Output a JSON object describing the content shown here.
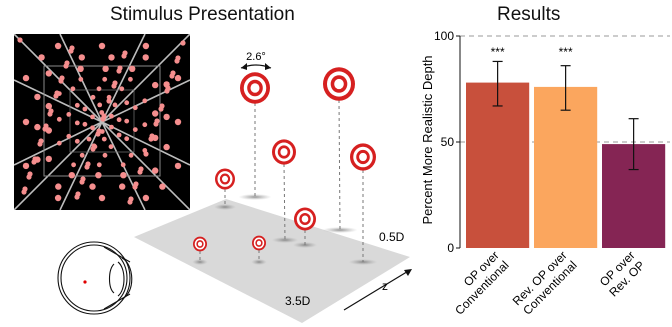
{
  "stimulus": {
    "title": "Stimulus Presentation",
    "angle_label": "2.6°",
    "near_label": "0.5D",
    "far_label": "3.5D",
    "axis_label": "z"
  },
  "results": {
    "title": "Results"
  },
  "chart_data": {
    "type": "bar",
    "title": "Results",
    "xlabel": "",
    "ylabel": "Percent More Realistic Depth",
    "ylim": [
      0,
      100
    ],
    "yticks": [
      0,
      50,
      100
    ],
    "categories": [
      "OP over Conventional",
      "Rev. OP over Conventional",
      "OP over Rev. OP"
    ],
    "values": [
      78,
      76,
      49
    ],
    "errors_low": [
      67,
      65,
      37
    ],
    "errors_high": [
      88,
      86,
      61
    ],
    "significance": [
      "***",
      "***",
      ""
    ],
    "colors": [
      "#c8503c",
      "#fba65e",
      "#852554"
    ],
    "reference_lines": [
      50,
      100
    ],
    "grid": false
  }
}
